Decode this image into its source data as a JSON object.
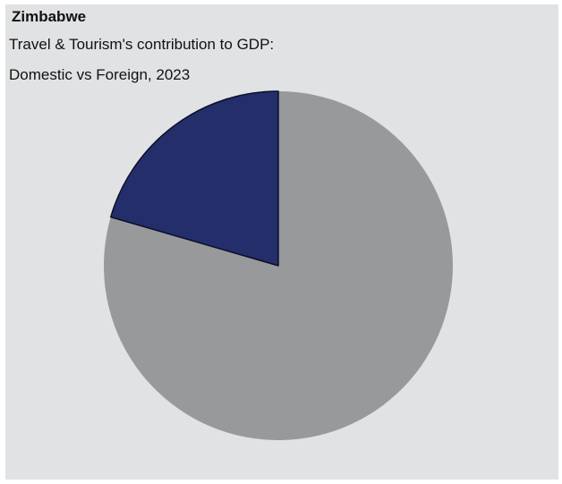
{
  "chart_data": {
    "type": "pie",
    "title": "Zimbabwe",
    "subtitle_lines": [
      "Travel & Tourism's contribution to GDP:",
      "Domestic vs Foreign, 2023"
    ],
    "slices": [
      {
        "value": 79.5,
        "color": "#98999b"
      },
      {
        "value": 20.5,
        "color": "#232e6a"
      }
    ],
    "start_angle_deg": 0,
    "direction": "clockwise",
    "slice_stroke_color": "#0b0f2b"
  }
}
